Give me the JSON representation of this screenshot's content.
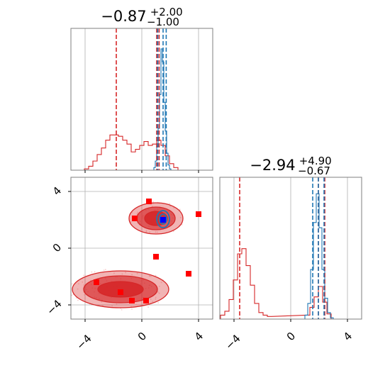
{
  "colors": {
    "red": "#d62728",
    "blue": "#1f77b4",
    "truth_blue": "#0000ff",
    "truth_red": "#ff0000",
    "grid": "#b0b0b0",
    "axes": "#7f7f7f"
  },
  "chart_data": [
    {
      "panel": "top-left",
      "type": "histogram",
      "title": {
        "main": "−0.87",
        "sup": "+2.00",
        "sub": "−1.00"
      },
      "xlim": [
        -5,
        5
      ],
      "x_ticks": [
        -4,
        0,
        4
      ],
      "show_x_tick_labels": false,
      "grid": true,
      "series": [
        {
          "color": "#d62728",
          "bins": [
            [
              -3.9,
              0.01
            ],
            [
              -3.6,
              0.03
            ],
            [
              -3.3,
              0.07
            ],
            [
              -3.0,
              0.12
            ],
            [
              -2.7,
              0.17
            ],
            [
              -2.4,
              0.23
            ],
            [
              -2.1,
              0.27
            ],
            [
              -1.8,
              0.27
            ],
            [
              -1.5,
              0.26
            ],
            [
              -1.2,
              0.23
            ],
            [
              -0.9,
              0.2
            ],
            [
              -0.6,
              0.14
            ],
            [
              -0.3,
              0.16
            ],
            [
              0.0,
              0.19
            ],
            [
              0.3,
              0.22
            ],
            [
              0.6,
              0.19
            ],
            [
              0.9,
              0.2
            ],
            [
              1.2,
              0.23
            ],
            [
              1.5,
              0.19
            ],
            [
              1.8,
              0.11
            ],
            [
              2.1,
              0.05
            ],
            [
              2.4,
              0.02
            ]
          ],
          "quantile_lines": [
            -1.8,
            1.05,
            1.22
          ]
        },
        {
          "color": "#1f77b4",
          "bins": [
            [
              0.9,
              0.02
            ],
            [
              1.0,
              0.07
            ],
            [
              1.1,
              0.18
            ],
            [
              1.2,
              0.32
            ],
            [
              1.3,
              0.58
            ],
            [
              1.4,
              0.93
            ],
            [
              1.5,
              0.83
            ],
            [
              1.6,
              0.52
            ],
            [
              1.7,
              0.3
            ],
            [
              1.8,
              0.13
            ],
            [
              1.9,
              0.04
            ],
            [
              2.0,
              0.01
            ]
          ],
          "quantile_lines": [
            1.12,
            1.5,
            1.72
          ]
        }
      ]
    },
    {
      "panel": "bottom-left",
      "type": "scatter",
      "xlim": [
        -5,
        5
      ],
      "ylim": [
        -5,
        5
      ],
      "x_ticks": [
        -4,
        0,
        4
      ],
      "y_ticks": [
        -4,
        0,
        4
      ],
      "x_tick_labels": [
        "−4",
        "0",
        "4"
      ],
      "y_tick_labels": [
        "−4",
        "0",
        "4"
      ],
      "grid": true,
      "contours": [
        {
          "color": "#d62728",
          "center": [
            1.0,
            2.1
          ],
          "levels": [
            [
              1.9,
              1.1,
              0.35
            ],
            [
              1.35,
              0.8,
              0.65
            ],
            [
              0.8,
              0.5,
              0.9
            ]
          ]
        },
        {
          "color": "#d62728",
          "center": [
            -1.5,
            -2.9
          ],
          "levels": [
            [
              3.4,
              1.3,
              0.35
            ],
            [
              2.6,
              0.95,
              0.65
            ],
            [
              1.6,
              0.55,
              0.9
            ]
          ]
        },
        {
          "color": "#1f77b4",
          "center": [
            1.5,
            2.05
          ],
          "levels": [
            [
              0.45,
              0.6,
              0.0
            ],
            [
              0.25,
              0.35,
              0.0
            ]
          ]
        }
      ],
      "red_markers": [
        [
          0.5,
          3.3
        ],
        [
          -0.5,
          2.1
        ],
        [
          4.0,
          2.4
        ],
        [
          1.0,
          -0.6
        ],
        [
          3.3,
          -1.8
        ],
        [
          -3.2,
          -2.4
        ],
        [
          -1.5,
          -3.1
        ],
        [
          -0.7,
          -3.7
        ],
        [
          0.3,
          -3.7
        ]
      ],
      "blue_markers": [
        [
          1.5,
          2.0
        ]
      ]
    },
    {
      "panel": "bottom-right",
      "type": "histogram",
      "title": {
        "main": "−2.94",
        "sup": "+4.90",
        "sub": "−0.67"
      },
      "xlim": [
        -5,
        5
      ],
      "x_ticks": [
        -4,
        0,
        4
      ],
      "x_tick_labels": [
        "−4",
        "0",
        "4"
      ],
      "grid": true,
      "series": [
        {
          "color": "#d62728",
          "bins": [
            [
              -4.8,
              0.03
            ],
            [
              -4.5,
              0.06
            ],
            [
              -4.2,
              0.15
            ],
            [
              -3.9,
              0.3
            ],
            [
              -3.6,
              0.5
            ],
            [
              -3.3,
              0.54
            ],
            [
              -3.0,
              0.41
            ],
            [
              -2.7,
              0.26
            ],
            [
              -2.4,
              0.12
            ],
            [
              -2.1,
              0.05
            ],
            [
              -1.8,
              0.03
            ],
            [
              -1.5,
              0.02
            ],
            [
              1.2,
              0.03
            ],
            [
              1.5,
              0.09
            ],
            [
              1.8,
              0.17
            ],
            [
              2.1,
              0.25
            ],
            [
              2.4,
              0.13
            ],
            [
              2.7,
              0.04
            ]
          ],
          "quantile_lines": [
            -3.6,
            1.95,
            2.4
          ]
        },
        {
          "color": "#1f77b4",
          "bins": [
            [
              1.1,
              0.03
            ],
            [
              1.3,
              0.12
            ],
            [
              1.5,
              0.38
            ],
            [
              1.7,
              0.74
            ],
            [
              1.9,
              0.96
            ],
            [
              2.1,
              0.7
            ],
            [
              2.3,
              0.38
            ],
            [
              2.5,
              0.16
            ],
            [
              2.7,
              0.05
            ],
            [
              2.9,
              0.01
            ]
          ],
          "quantile_lines": [
            1.55,
            1.95,
            2.35
          ]
        }
      ]
    }
  ]
}
